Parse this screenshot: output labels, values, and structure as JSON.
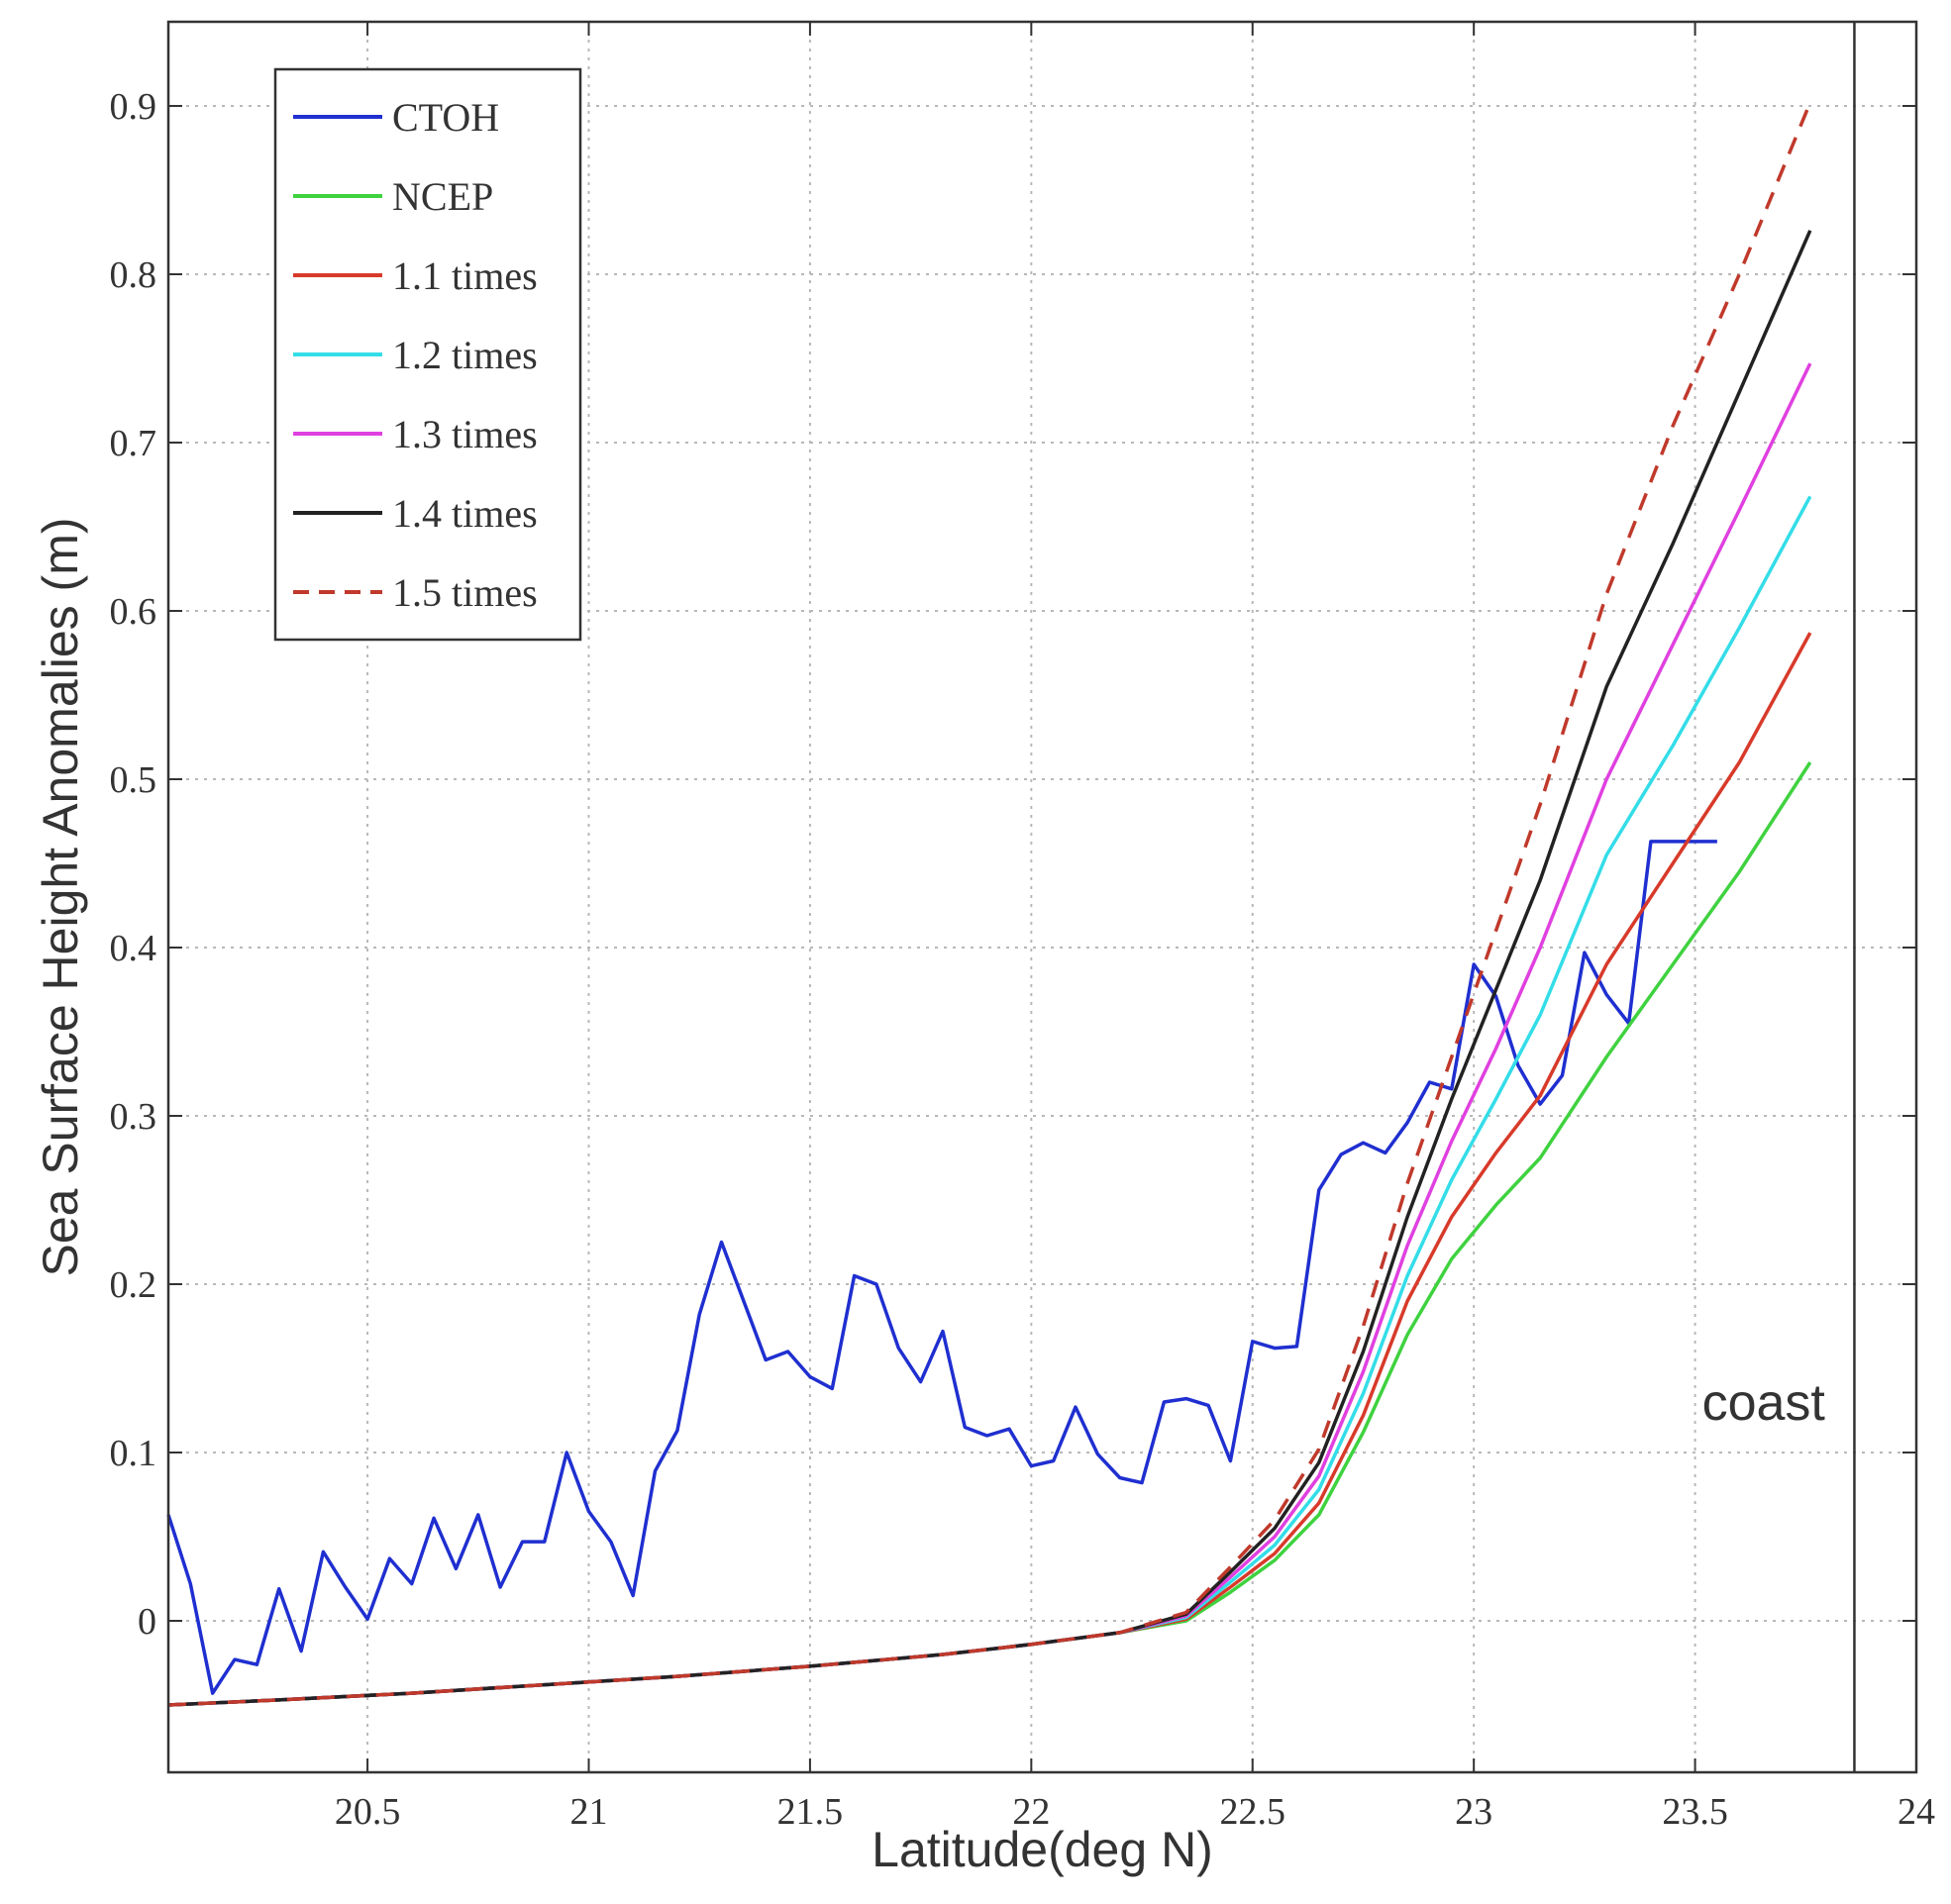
{
  "chart_data": {
    "type": "line",
    "xlabel": "Latitude(deg N)",
    "ylabel": "Sea Surface Height Anomalies (m)",
    "xlim": [
      20.05,
      24.0
    ],
    "ylim": [
      -0.09,
      0.95
    ],
    "x_ticks": [
      20.5,
      21,
      21.5,
      22,
      22.5,
      23,
      23.5,
      24
    ],
    "x_tick_labels": [
      "20.5",
      "21",
      "21.5",
      "22",
      "22.5",
      "23",
      "23.5",
      "24"
    ],
    "y_ticks": [
      0,
      0.1,
      0.2,
      0.3,
      0.4,
      0.5,
      0.6,
      0.7,
      0.8,
      0.9
    ],
    "y_tick_labels": [
      "0",
      "0.1",
      "0.2",
      "0.3",
      "0.4",
      "0.5",
      "0.6",
      "0.7",
      "0.8",
      "0.9"
    ],
    "grid": true,
    "legend_position": "top-left",
    "annotation": {
      "text": "coast",
      "x": 23.65,
      "y": 0.13
    },
    "coast_line_x": 23.86,
    "series": [
      {
        "name": "CTOH",
        "color": "#1f2fd0",
        "dash": false,
        "x": [
          20.05,
          20.1,
          20.15,
          20.2,
          20.25,
          20.3,
          20.35,
          20.4,
          20.45,
          20.5,
          20.55,
          20.6,
          20.65,
          20.7,
          20.75,
          20.8,
          20.85,
          20.9,
          20.95,
          21.0,
          21.05,
          21.1,
          21.15,
          21.2,
          21.25,
          21.3,
          21.35,
          21.4,
          21.45,
          21.5,
          21.55,
          21.6,
          21.65,
          21.7,
          21.75,
          21.8,
          21.85,
          21.9,
          21.95,
          22.0,
          22.05,
          22.1,
          22.15,
          22.2,
          22.25,
          22.3,
          22.35,
          22.4,
          22.45,
          22.5,
          22.55,
          22.6,
          22.65,
          22.7,
          22.75,
          22.8,
          22.85,
          22.9,
          22.95,
          23.0,
          23.05,
          23.1,
          23.15,
          23.2,
          23.25,
          23.3,
          23.35,
          23.4,
          23.45,
          23.5,
          23.55
        ],
        "values": [
          0.063,
          0.022,
          -0.043,
          -0.023,
          -0.026,
          0.019,
          -0.018,
          0.041,
          0.02,
          0.001,
          0.037,
          0.022,
          0.061,
          0.031,
          0.063,
          0.02,
          0.047,
          0.047,
          0.1,
          0.065,
          0.047,
          0.015,
          0.089,
          0.113,
          0.182,
          0.225,
          0.19,
          0.155,
          0.16,
          0.145,
          0.138,
          0.205,
          0.2,
          0.162,
          0.142,
          0.172,
          0.115,
          0.11,
          0.114,
          0.092,
          0.095,
          0.127,
          0.099,
          0.085,
          0.082,
          0.13,
          0.132,
          0.128,
          0.095,
          0.166,
          0.162,
          0.163,
          0.256,
          0.277,
          0.284,
          0.278,
          0.296,
          0.32,
          0.316,
          0.39,
          0.371,
          0.33,
          0.307,
          0.324,
          0.397,
          0.372,
          0.355,
          0.463,
          0.463,
          0.463,
          0.463
        ]
      },
      {
        "name": "NCEP",
        "color": "#3fd23f",
        "dash": false,
        "x": [
          20.05,
          20.3,
          20.6,
          20.9,
          21.2,
          21.5,
          21.8,
          22.0,
          22.2,
          22.35,
          22.45,
          22.55,
          22.65,
          22.75,
          22.85,
          22.95,
          23.05,
          23.15,
          23.3,
          23.45,
          23.6,
          23.76
        ],
        "values": [
          -0.05,
          -0.047,
          -0.043,
          -0.038,
          -0.033,
          -0.027,
          -0.02,
          -0.014,
          -0.007,
          0.0,
          0.017,
          0.036,
          0.063,
          0.112,
          0.17,
          0.215,
          0.247,
          0.275,
          0.335,
          0.39,
          0.445,
          0.51
        ]
      },
      {
        "name": "1.1 times",
        "color": "#d83a2a",
        "dash": false,
        "x": [
          20.05,
          20.3,
          20.6,
          20.9,
          21.2,
          21.5,
          21.8,
          22.0,
          22.2,
          22.35,
          22.45,
          22.55,
          22.65,
          22.75,
          22.85,
          22.95,
          23.05,
          23.15,
          23.3,
          23.45,
          23.6,
          23.76
        ],
        "values": [
          -0.05,
          -0.047,
          -0.043,
          -0.038,
          -0.033,
          -0.027,
          -0.02,
          -0.014,
          -0.007,
          0.001,
          0.02,
          0.04,
          0.07,
          0.122,
          0.19,
          0.24,
          0.278,
          0.312,
          0.39,
          0.45,
          0.51,
          0.587
        ]
      },
      {
        "name": "1.2 times",
        "color": "#33dde8",
        "dash": false,
        "x": [
          20.05,
          20.3,
          20.6,
          20.9,
          21.2,
          21.5,
          21.8,
          22.0,
          22.2,
          22.35,
          22.45,
          22.55,
          22.65,
          22.75,
          22.85,
          22.95,
          23.05,
          23.15,
          23.3,
          23.45,
          23.6,
          23.76
        ],
        "values": [
          -0.05,
          -0.047,
          -0.043,
          -0.038,
          -0.033,
          -0.027,
          -0.02,
          -0.014,
          -0.007,
          0.002,
          0.023,
          0.045,
          0.078,
          0.135,
          0.205,
          0.262,
          0.31,
          0.36,
          0.455,
          0.52,
          0.59,
          0.668
        ]
      },
      {
        "name": "1.3 times",
        "color": "#e040e0",
        "dash": false,
        "x": [
          20.05,
          20.3,
          20.6,
          20.9,
          21.2,
          21.5,
          21.8,
          22.0,
          22.2,
          22.35,
          22.45,
          22.55,
          22.65,
          22.75,
          22.85,
          22.95,
          23.05,
          23.15,
          23.3,
          23.45,
          23.6,
          23.76
        ],
        "values": [
          -0.05,
          -0.047,
          -0.043,
          -0.038,
          -0.033,
          -0.027,
          -0.02,
          -0.014,
          -0.007,
          0.003,
          0.026,
          0.05,
          0.086,
          0.148,
          0.223,
          0.285,
          0.34,
          0.4,
          0.5,
          0.58,
          0.66,
          0.747
        ]
      },
      {
        "name": "1.4 times",
        "color": "#222222",
        "dash": false,
        "x": [
          20.05,
          20.3,
          20.6,
          20.9,
          21.2,
          21.5,
          21.8,
          22.0,
          22.2,
          22.35,
          22.45,
          22.55,
          22.65,
          22.75,
          22.85,
          22.95,
          23.05,
          23.15,
          23.3,
          23.45,
          23.6,
          23.76
        ],
        "values": [
          -0.05,
          -0.047,
          -0.043,
          -0.038,
          -0.033,
          -0.027,
          -0.02,
          -0.014,
          -0.007,
          0.004,
          0.029,
          0.055,
          0.094,
          0.16,
          0.24,
          0.31,
          0.375,
          0.44,
          0.555,
          0.64,
          0.73,
          0.826
        ]
      },
      {
        "name": "1.5 times",
        "color": "#c0392b",
        "dash": true,
        "x": [
          20.05,
          20.3,
          20.6,
          20.9,
          21.2,
          21.5,
          21.8,
          22.0,
          22.2,
          22.35,
          22.45,
          22.55,
          22.65,
          22.75,
          22.85,
          22.95,
          23.05,
          23.15,
          23.3,
          23.45,
          23.6,
          23.76
        ],
        "values": [
          -0.05,
          -0.047,
          -0.043,
          -0.038,
          -0.033,
          -0.027,
          -0.02,
          -0.014,
          -0.007,
          0.005,
          0.032,
          0.06,
          0.102,
          0.175,
          0.26,
          0.335,
          0.41,
          0.485,
          0.61,
          0.71,
          0.8,
          0.902
        ]
      }
    ]
  }
}
